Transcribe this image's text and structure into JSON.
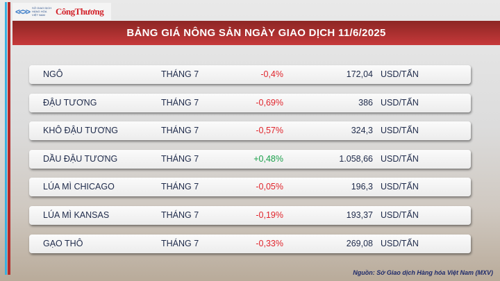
{
  "logo": {
    "org": "SỞ GIAO DỊCH HÀNG HÓA VIỆT NAM",
    "brand": "CôngThương"
  },
  "title": "BẢNG GIÁ NÔNG SẢN NGÀY GIAO DỊCH 11/6/2025",
  "rows": [
    {
      "name": "NGÔ",
      "month": "THÁNG 7",
      "change": "-0,4%",
      "price": "172,04",
      "unit": "USD/TẤN",
      "dir": "neg"
    },
    {
      "name": "ĐẬU TƯƠNG",
      "month": "THÁNG 7",
      "change": "-0,69%",
      "price": "386",
      "unit": "USD/TẤN",
      "dir": "neg"
    },
    {
      "name": "KHÔ ĐẬU TƯƠNG",
      "month": "THÁNG 7",
      "change": "-0,57%",
      "price": "324,3",
      "unit": "USD/TẤN",
      "dir": "neg"
    },
    {
      "name": "DẦU ĐẬU TƯƠNG",
      "month": "THÁNG 7",
      "change": "+0,48%",
      "price": "1.058,66",
      "unit": "USD/TẤN",
      "dir": "pos"
    },
    {
      "name": "LÚA MÌ CHICAGO",
      "month": "THÁNG 7",
      "change": "-0,05%",
      "price": "196,3",
      "unit": "USD/TẤN",
      "dir": "neg"
    },
    {
      "name": "LÚA MÌ KANSAS",
      "month": "THÁNG 7",
      "change": "-0,19%",
      "price": "193,37",
      "unit": "USD/TẤN",
      "dir": "neg"
    },
    {
      "name": "GẠO THÔ",
      "month": "THÁNG 7",
      "change": "-0,33%",
      "price": "269,08",
      "unit": "USD/TẤN",
      "dir": "neg"
    }
  ],
  "source": "Nguồn: Sở Giao dịch Hàng hóa Việt Nam (MXV)",
  "colors": {
    "header": "#b03230",
    "negative": "#e0242b",
    "positive": "#1aa04a"
  }
}
